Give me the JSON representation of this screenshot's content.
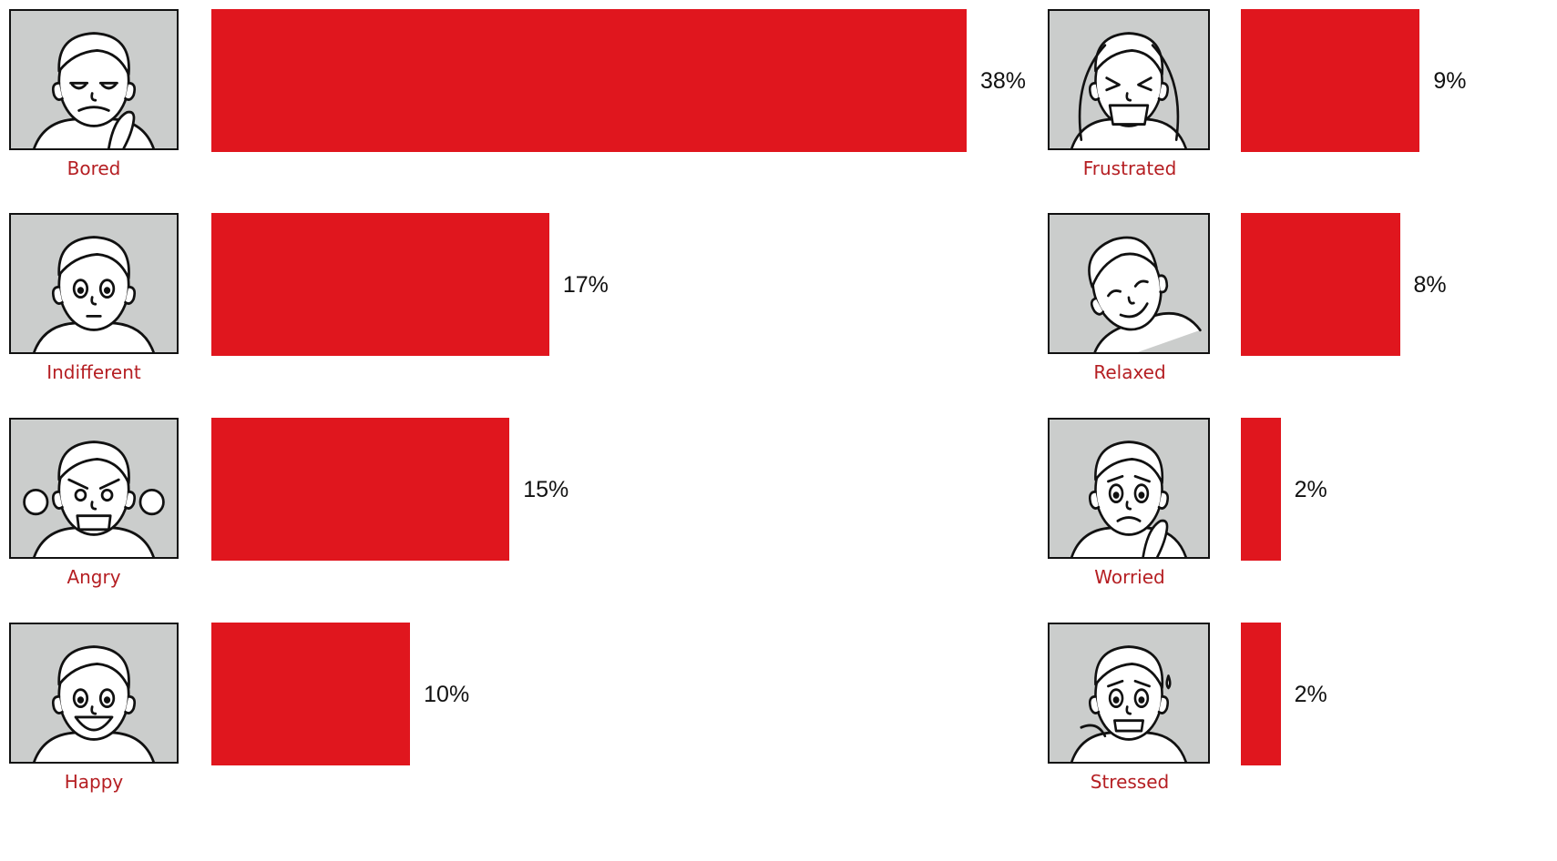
{
  "chart_data": {
    "type": "bar",
    "orientation": "horizontal",
    "layout": "two columns of four rows",
    "bar_color": "#e0161e",
    "label_color": "#b51e22",
    "categories": [
      "Bored",
      "Indifferent",
      "Angry",
      "Happy",
      "Frustrated",
      "Relaxed",
      "Worried",
      "Stressed"
    ],
    "values": [
      38,
      17,
      15,
      10,
      9,
      8,
      2,
      2
    ],
    "value_labels": [
      "38%",
      "17%",
      "15%",
      "10%",
      "9%",
      "8%",
      "2%",
      "2%"
    ],
    "unit": "%",
    "icons": [
      "bored-face-icon",
      "indifferent-face-icon",
      "angry-face-icon",
      "happy-face-icon",
      "frustrated-face-icon",
      "relaxed-face-icon",
      "worried-face-icon",
      "stressed-face-icon"
    ],
    "grid": false,
    "axes_visible": false
  }
}
